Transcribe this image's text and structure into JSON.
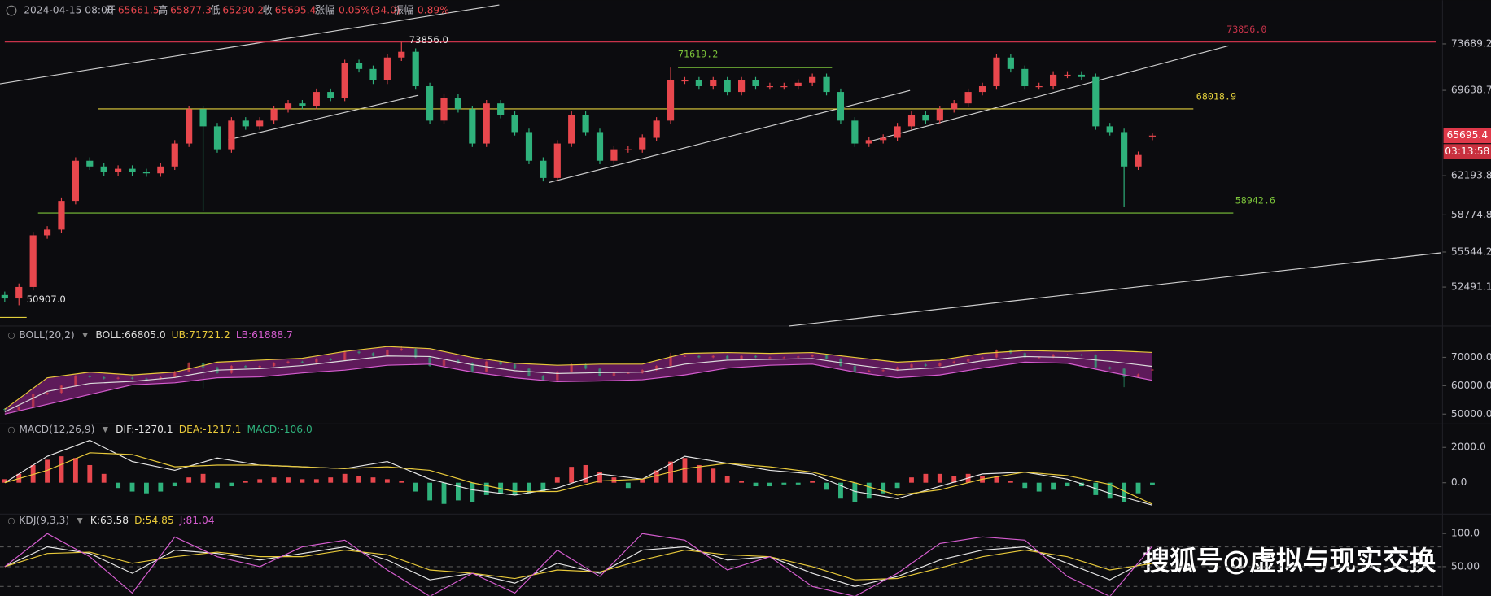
{
  "header": {
    "datetime": "2024-04-15 08:00",
    "open_label": "开",
    "high_label": "高",
    "low_label": "低",
    "close_label": "收",
    "change_label": "涨幅",
    "change": "0.05%(34.0)",
    "amplitude_label": "振幅",
    "amplitude": "0.89%"
  },
  "watermark": "搜狐号@虚拟与现实交换",
  "chart_data": {
    "type": "candlestick",
    "up_color": "#e8474d",
    "down_color": "#2fb27c",
    "ylim": [
      49345,
      77498
    ],
    "yticks": [
      73689.2,
      69638.7,
      62193.8,
      58774.8,
      55544.2,
      52491.1
    ],
    "countdown": "03:13:58",
    "open": [
      51800,
      51500,
      52500,
      57000,
      57500,
      60000,
      63500,
      63000,
      62500,
      62800,
      62500,
      62400,
      63000,
      65000,
      68000,
      66500,
      64500,
      67000,
      66500,
      67000,
      68000,
      68500,
      68300,
      69500,
      69000,
      72000,
      71500,
      70500,
      72500,
      73000,
      70000,
      67000,
      69000,
      68000,
      65000,
      68500,
      67500,
      66000,
      63500,
      62000,
      65000,
      67500,
      66000,
      63500,
      64500,
      64500,
      65500,
      67000,
      70500,
      70500,
      70000,
      70500,
      69500,
      70500,
      70000,
      70000,
      70000,
      70300,
      70800,
      69500,
      67000,
      65000,
      65300,
      65500,
      66500,
      67500,
      67000,
      68000,
      68500,
      69500,
      70000,
      72500,
      71500,
      70000,
      70000,
      71000,
      71000,
      70800,
      66500,
      66000,
      63000,
      65661.5
    ],
    "high": [
      52100,
      52800,
      57300,
      57800,
      60300,
      63800,
      63800,
      63300,
      63100,
      63100,
      62800,
      63300,
      65300,
      68300,
      68300,
      66800,
      67300,
      67300,
      67300,
      68300,
      68800,
      68800,
      69800,
      69800,
      72300,
      72300,
      71800,
      72800,
      73856,
      73300,
      70300,
      69300,
      69300,
      68300,
      68800,
      68800,
      67800,
      66300,
      63800,
      65300,
      67800,
      67800,
      66300,
      64800,
      64800,
      65800,
      67300,
      71619.2,
      70800,
      70800,
      70800,
      70800,
      70800,
      70800,
      70300,
      70300,
      70600,
      71100,
      71100,
      69800,
      67300,
      65600,
      65800,
      66800,
      67800,
      67800,
      68300,
      68800,
      69800,
      70300,
      72800,
      72800,
      71800,
      70300,
      71300,
      71300,
      71300,
      71100,
      66800,
      66300,
      64300,
      65877.3
    ],
    "low": [
      51200,
      50907,
      52200,
      56700,
      57200,
      59700,
      62700,
      62200,
      62200,
      62200,
      62100,
      62100,
      62700,
      64700,
      59100,
      64200,
      64200,
      66200,
      66200,
      66700,
      67700,
      68000,
      68000,
      68700,
      68700,
      71200,
      70200,
      70200,
      72200,
      69700,
      66700,
      66700,
      67700,
      64700,
      64700,
      67200,
      65700,
      63200,
      61700,
      61700,
      64700,
      65700,
      63200,
      63200,
      64200,
      64200,
      65200,
      66700,
      70200,
      69700,
      69700,
      69200,
      69200,
      69700,
      69700,
      69700,
      69700,
      70000,
      69200,
      66700,
      64700,
      64700,
      65000,
      65200,
      66200,
      66700,
      66700,
      67700,
      68200,
      69200,
      69700,
      71200,
      69700,
      69700,
      69700,
      70700,
      70500,
      66200,
      65700,
      59500,
      62700,
      65290.2
    ],
    "close": [
      51500,
      52500,
      57000,
      57500,
      60000,
      63500,
      63000,
      62500,
      62800,
      62500,
      62400,
      63000,
      65000,
      68000,
      66500,
      64500,
      67000,
      66500,
      67000,
      68000,
      68500,
      68300,
      69500,
      69000,
      72000,
      71500,
      70500,
      72500,
      73000,
      70000,
      67000,
      69000,
      68000,
      65000,
      68500,
      67500,
      66000,
      63500,
      62000,
      65000,
      67500,
      66000,
      63500,
      64500,
      64500,
      65500,
      67000,
      70500,
      70500,
      70000,
      70500,
      69500,
      70500,
      70000,
      70000,
      70000,
      70300,
      70800,
      69500,
      67000,
      65000,
      65300,
      65500,
      66500,
      67500,
      67000,
      68000,
      68500,
      69500,
      70000,
      72500,
      71500,
      70000,
      70000,
      71000,
      71000,
      70800,
      66500,
      66000,
      63000,
      64000,
      65695.4
    ],
    "levels": [
      {
        "value": 73856,
        "label": "73856.0",
        "color": "#c8334a"
      },
      {
        "value": 68018.9,
        "color": "#e2cf3c"
      },
      {
        "value": 58942.6,
        "color": "#7cc43a"
      },
      {
        "value": 71619.2,
        "color": "#7cc43a"
      }
    ],
    "annotations": [
      {
        "index": 28,
        "at": "high",
        "label": "73856.0"
      },
      {
        "index": 1,
        "at": "low",
        "label": "50907.0"
      }
    ],
    "indicators": [
      {
        "type": "boll",
        "name": "BOLL(20,2)",
        "ylim": [
          46552,
          81034
        ],
        "yticks": [
          {
            "value": 70000,
            "label": "70000.0"
          },
          {
            "value": 60000,
            "label": "60000.0"
          },
          {
            "value": 50000,
            "label": "50000.0"
          }
        ],
        "x": [
          0,
          3,
          6,
          9,
          12,
          15,
          18,
          21,
          24,
          27,
          30,
          33,
          36,
          39,
          42,
          45,
          48,
          51,
          54,
          57,
          60,
          63,
          66,
          69,
          72,
          75,
          78,
          81
        ],
        "series": [
          {
            "label": "BOLL:66805.0",
            "color": "#dcdcdc",
            "values": [
              50800,
              58000,
              60800,
              61500,
              62900,
              65500,
              66000,
              67100,
              68800,
              70500,
              70300,
              67400,
              65300,
              64300,
              64600,
              64800,
              67600,
              69000,
              69300,
              69600,
              67400,
              65500,
              66400,
              68800,
              70300,
              70000,
              68600,
              66805
            ]
          },
          {
            "label": "UB:71721.2",
            "color": "#e8c93a",
            "values": [
              51700,
              62800,
              64800,
              63800,
              64800,
              68300,
              69000,
              69700,
              72100,
              73800,
              73100,
              70000,
              67900,
              67200,
              67600,
              67600,
              71400,
              71700,
              71400,
              71700,
              70000,
              68300,
              69000,
              71400,
              72400,
              72100,
              72400,
              71721.2
            ]
          },
          {
            "label": "LB:61888.7",
            "color": "#d65dd0",
            "values": [
              50000,
              53400,
              56900,
              60300,
              61000,
              62800,
              63100,
              64500,
              65500,
              67200,
              67600,
              64800,
              62800,
              61400,
              61700,
              62100,
              63800,
              66200,
              67200,
              67600,
              64800,
              62800,
              63800,
              66200,
              68300,
              67900,
              64800,
              61888.7
            ]
          }
        ]
      },
      {
        "type": "macd",
        "name": "MACD(12,26,9)",
        "ylim": [
          -1778,
          3333
        ],
        "yticks": [
          {
            "value": 2000,
            "label": "2000.0"
          },
          {
            "value": 0,
            "label": "0.0"
          }
        ],
        "x": [
          0,
          3,
          6,
          9,
          12,
          15,
          18,
          21,
          24,
          27,
          30,
          33,
          36,
          39,
          42,
          45,
          48,
          51,
          54,
          57,
          60,
          63,
          66,
          69,
          72,
          75,
          78,
          81
        ],
        "series": [
          {
            "label": "DIF:-1270.1",
            "color": "#e6e6e6",
            "values": [
              0,
              1500,
              2400,
              1200,
              700,
              1400,
              1000,
              900,
              800,
              1200,
              200,
              -400,
              -700,
              -300,
              500,
              200,
              1500,
              1100,
              700,
              500,
              -500,
              -900,
              -200,
              500,
              600,
              200,
              -600,
              -1270.1
            ]
          },
          {
            "label": "DEA:-1217.1",
            "color": "#e8c93a",
            "values": [
              0,
              700,
              1700,
              1600,
              900,
              1000,
              1000,
              900,
              800,
              900,
              700,
              0,
              -500,
              -500,
              100,
              200,
              800,
              1100,
              900,
              600,
              0,
              -700,
              -400,
              200,
              600,
              400,
              -100,
              -1217.1
            ]
          }
        ],
        "histogram": {
          "label": "MACD:-106.0",
          "color": "#2fb27c",
          "values": [
            200,
            500,
            1000,
            1300,
            1500,
            1400,
            1000,
            500,
            -300,
            -500,
            -600,
            -500,
            -200,
            300,
            500,
            -300,
            -200,
            100,
            200,
            300,
            300,
            200,
            200,
            300,
            500,
            400,
            300,
            200,
            100,
            -500,
            -1000,
            -1200,
            -1000,
            -1100,
            -700,
            -600,
            -700,
            -600,
            -500,
            300,
            900,
            1000,
            600,
            300,
            -300,
            200,
            700,
            1200,
            1400,
            1000,
            800,
            400,
            100,
            -200,
            -200,
            -100,
            -100,
            100,
            -400,
            -900,
            -1100,
            -900,
            -600,
            -300,
            300,
            500,
            500,
            400,
            500,
            400,
            400,
            100,
            -300,
            -500,
            -400,
            -200,
            -200,
            -700,
            -900,
            -1100,
            -600,
            -106.0
          ]
        }
      },
      {
        "type": "kdj",
        "name": "KDJ(9,3,3)",
        "ylim": [
          5.9,
          129.4
        ],
        "yticks": [
          {
            "value": 100,
            "label": "100.0"
          },
          {
            "value": 50,
            "label": "50.00"
          }
        ],
        "levels": [
          80,
          50,
          20
        ],
        "x": [
          0,
          3,
          6,
          9,
          12,
          15,
          18,
          21,
          24,
          27,
          30,
          33,
          36,
          39,
          42,
          45,
          48,
          51,
          54,
          57,
          60,
          63,
          66,
          69,
          72,
          75,
          78,
          81
        ],
        "series": [
          {
            "label": "K:63.58",
            "color": "#e6e6e6",
            "values": [
              50,
              80,
              70,
              40,
              75,
              70,
              60,
              70,
              80,
              60,
              30,
              40,
              25,
              55,
              40,
              75,
              80,
              60,
              65,
              40,
              20,
              35,
              60,
              75,
              80,
              55,
              30,
              63.58
            ]
          },
          {
            "label": "D:54.85",
            "color": "#e8c93a",
            "values": [
              50,
              70,
              72,
              55,
              65,
              72,
              65,
              65,
              75,
              68,
              45,
              40,
              32,
              45,
              42,
              60,
              75,
              68,
              65,
              50,
              30,
              32,
              48,
              65,
              75,
              65,
              45,
              54.85
            ]
          },
          {
            "label": "J:81.04",
            "color": "#d65dd0",
            "values": [
              50,
              100,
              65,
              10,
              95,
              65,
              50,
              80,
              90,
              45,
              5,
              40,
              10,
              75,
              35,
              100,
              90,
              45,
              65,
              20,
              5,
              40,
              85,
              95,
              90,
              35,
              5,
              81.04
            ]
          }
        ]
      }
    ]
  }
}
